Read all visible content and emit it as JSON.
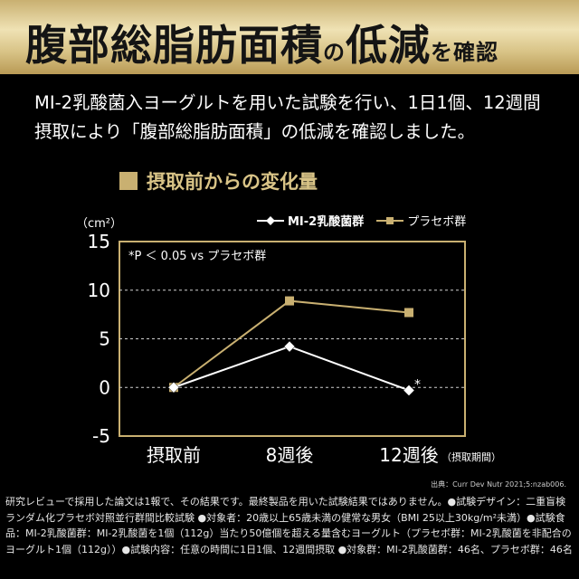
{
  "header": {
    "title_part1": "腹部総脂肪面積",
    "title_part2": "の",
    "title_part3": "低減",
    "title_part4": "を確認"
  },
  "intro": {
    "line1": "MI-2乳酸菌入ヨーグルトを用いた試験を行い、1日1個、12週間",
    "line2": "摂取により「腹部総脂肪面積」の低減を確認しました。"
  },
  "section": {
    "heading": "摂取前からの変化量"
  },
  "colors": {
    "gold": "#c9b071",
    "white": "#ffffff"
  },
  "chart_data": {
    "type": "line",
    "categories": [
      "摂取前",
      "8週後",
      "12週後"
    ],
    "x_suffix": "（摂取期間）",
    "ylabel": "（cm²）",
    "ylim": [
      -5,
      15
    ],
    "yticks": [
      "15",
      "10",
      "5",
      "0",
      "-5"
    ],
    "grid": true,
    "annotation": "*P ＜ 0.05 vs プラセボ群",
    "significance_mark": "*",
    "legend_position": "top-right",
    "series": [
      {
        "name": "MI-2乳酸菌群",
        "values": [
          0,
          4.2,
          -0.3
        ],
        "color": "#ffffff",
        "marker": "diamond"
      },
      {
        "name": "プラセボ群",
        "values": [
          0,
          8.9,
          7.7
        ],
        "color": "#c9b071",
        "marker": "square"
      }
    ]
  },
  "source": "出典：Curr Dev Nutr 2021;5:nzab006.",
  "footnote": "研究レビューで採用した論文は1報で、その結果です。最終製品を用いた試験結果ではありません。●試験デザイン：二重盲検ランダム化プラセボ対照並行群間比較試験 ●対象者：20歳以上65歳未満の健常な男女（BMI 25以上30kg/m²未満）●試験食品：MI-2乳酸菌群：MI-2乳酸菌を1個（112g）当たり50億個を超える量含むヨーグルト（プラセボ群：MI-2乳酸菌を非配合のヨーグルト1個（112g））●試験内容：任意の時間に1日1個、12週間摂取 ●対象群：MI-2乳酸菌群：46名、プラセボ群：46名"
}
